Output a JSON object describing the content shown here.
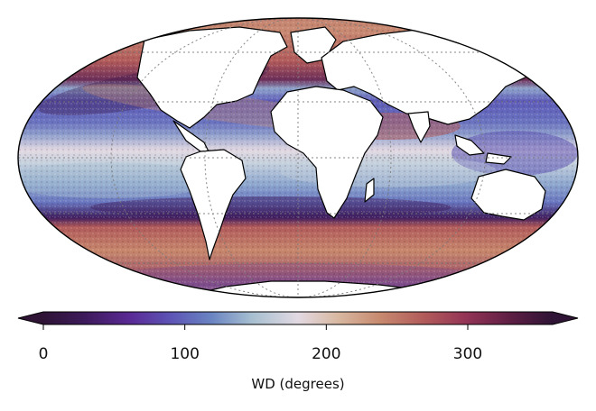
{
  "map": {
    "projection": "Mollweide",
    "variable": "wind direction",
    "graticule": "dotted",
    "coastlines": "black",
    "land_fill": "#ffffff"
  },
  "colorbar": {
    "colormap": "twilight_shifted",
    "min": 0,
    "max": 360,
    "extend": "both",
    "ticks": [
      0,
      100,
      200,
      300
    ],
    "tick_labels": [
      "0",
      "100",
      "200",
      "300"
    ],
    "label": "WD (degrees)"
  }
}
